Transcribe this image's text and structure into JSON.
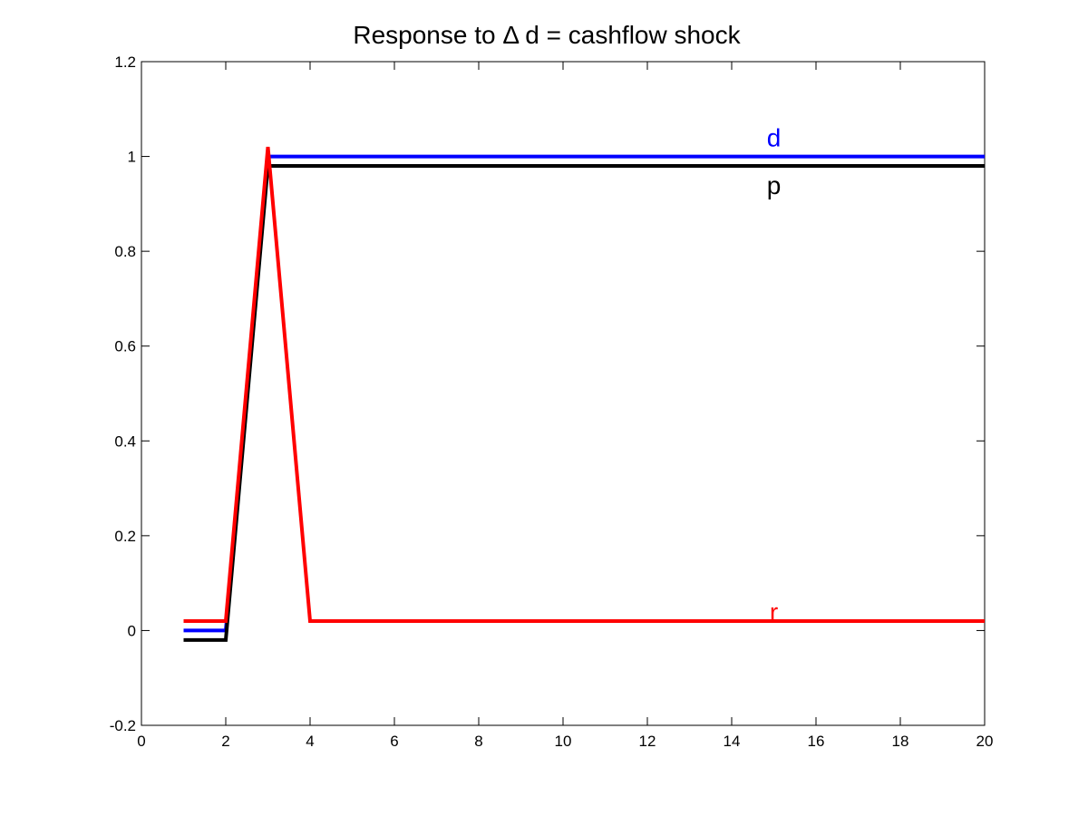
{
  "chart_data": {
    "type": "line",
    "title": "Response to  Δ d = cashflow shock",
    "xlabel": "",
    "ylabel": "",
    "xlim": [
      0,
      20
    ],
    "ylim": [
      -0.2,
      1.2
    ],
    "xticks": [
      0,
      2,
      4,
      6,
      8,
      10,
      12,
      14,
      16,
      18,
      20
    ],
    "yticks": [
      -0.2,
      0,
      0.2,
      0.4,
      0.6,
      0.8,
      1,
      1.2
    ],
    "xtick_labels": [
      "0",
      "2",
      "4",
      "6",
      "8",
      "10",
      "12",
      "14",
      "16",
      "18",
      "20"
    ],
    "ytick_labels": [
      "-0.2",
      "0",
      "0.2",
      "0.4",
      "0.6",
      "0.8",
      "1",
      "1.2"
    ],
    "grid": false,
    "legend": "inline labels",
    "series": [
      {
        "name": "d",
        "color": "#0000ff",
        "x": [
          1,
          2,
          3,
          20
        ],
        "y": [
          0,
          0,
          1,
          1
        ],
        "label_at": [
          15,
          1.04
        ]
      },
      {
        "name": "p",
        "color": "#000000",
        "x": [
          1,
          2,
          3,
          20
        ],
        "y": [
          -0.02,
          -0.02,
          0.98,
          0.98
        ],
        "label_at": [
          15,
          0.94
        ]
      },
      {
        "name": "r",
        "color": "#ff0000",
        "x": [
          1,
          2,
          3,
          4,
          20
        ],
        "y": [
          0.02,
          0.02,
          1.02,
          0.02,
          0.02
        ],
        "label_at": [
          15,
          0.04
        ]
      }
    ]
  }
}
